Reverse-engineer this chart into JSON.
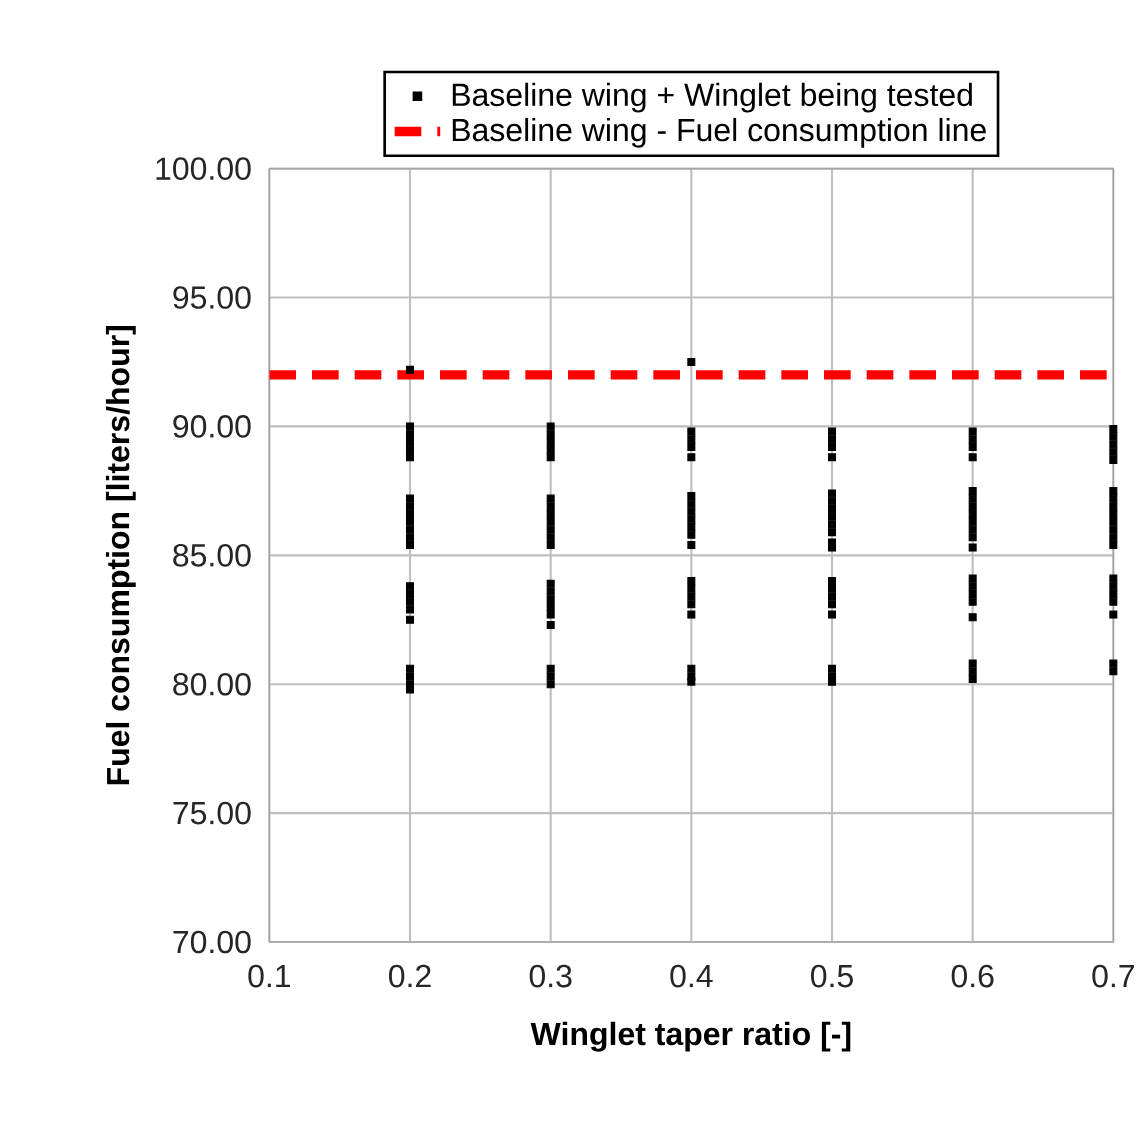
{
  "chart_data": {
    "type": "scatter",
    "xlabel": "Winglet taper ratio [-]",
    "ylabel": "Fuel consumption  [liters/hour]",
    "xlim": [
      0.1,
      0.7
    ],
    "xticks": [
      0.1,
      0.2,
      0.3,
      0.4,
      0.5,
      0.6,
      0.7
    ],
    "ylim": [
      70,
      100
    ],
    "yticks": [
      {
        "value": 70,
        "label": "70.00"
      },
      {
        "value": 75,
        "label": "75.00"
      },
      {
        "value": 80,
        "label": "80.00"
      },
      {
        "value": 85,
        "label": "85.00"
      },
      {
        "value": 90,
        "label": "90.00"
      },
      {
        "value": 95,
        "label": "95.00"
      },
      {
        "value": 100,
        "label": "100.00"
      }
    ],
    "grid": true,
    "legend": "top",
    "series": [
      {
        "name": "Baseline wing + Winglet being tested",
        "color": "#000000",
        "marker": "square",
        "x": [
          0.2,
          0.2,
          0.2,
          0.2,
          0.2,
          0.2,
          0.2,
          0.2,
          0.2,
          0.2,
          0.2,
          0.2,
          0.2,
          0.2,
          0.2,
          0.2,
          0.2,
          0.2,
          0.2,
          0.2,
          0.2,
          0.2,
          0.3,
          0.3,
          0.3,
          0.3,
          0.3,
          0.3,
          0.3,
          0.3,
          0.3,
          0.3,
          0.3,
          0.3,
          0.3,
          0.3,
          0.3,
          0.3,
          0.3,
          0.3,
          0.3,
          0.3,
          0.3,
          0.4,
          0.4,
          0.4,
          0.4,
          0.4,
          0.4,
          0.4,
          0.4,
          0.4,
          0.4,
          0.4,
          0.4,
          0.4,
          0.4,
          0.4,
          0.4,
          0.4,
          0.4,
          0.4,
          0.4,
          0.5,
          0.5,
          0.5,
          0.5,
          0.5,
          0.5,
          0.5,
          0.5,
          0.5,
          0.5,
          0.5,
          0.5,
          0.5,
          0.5,
          0.5,
          0.5,
          0.5,
          0.5,
          0.5,
          0.5,
          0.6,
          0.6,
          0.6,
          0.6,
          0.6,
          0.6,
          0.6,
          0.6,
          0.6,
          0.6,
          0.6,
          0.6,
          0.6,
          0.6,
          0.6,
          0.6,
          0.6,
          0.6,
          0.6,
          0.6,
          0.7,
          0.7,
          0.7,
          0.7,
          0.7,
          0.7,
          0.7,
          0.7,
          0.7,
          0.7,
          0.7,
          0.7,
          0.7,
          0.7,
          0.7,
          0.7,
          0.7,
          0.7,
          0.7,
          0.7
        ],
        "values": [
          92.2,
          90.0,
          89.7,
          89.4,
          89.1,
          88.8,
          87.2,
          86.9,
          86.6,
          86.3,
          86.0,
          85.7,
          85.4,
          83.8,
          83.5,
          83.2,
          82.9,
          82.5,
          80.6,
          80.3,
          80.0,
          79.8,
          90.0,
          89.7,
          89.4,
          89.1,
          88.8,
          87.2,
          86.9,
          86.6,
          86.3,
          86.0,
          85.7,
          85.4,
          83.9,
          83.6,
          83.3,
          83.0,
          82.7,
          82.3,
          80.6,
          80.3,
          80.0,
          92.5,
          89.8,
          89.5,
          89.2,
          88.8,
          87.3,
          87.0,
          86.7,
          86.4,
          86.1,
          85.8,
          85.4,
          84.0,
          83.7,
          83.4,
          83.1,
          82.7,
          80.6,
          80.3,
          80.1,
          89.8,
          89.5,
          89.2,
          88.8,
          87.4,
          87.1,
          86.8,
          86.5,
          86.2,
          85.9,
          85.5,
          85.3,
          84.0,
          83.7,
          83.4,
          83.1,
          82.7,
          80.6,
          80.3,
          80.1,
          89.8,
          89.5,
          89.2,
          88.8,
          87.5,
          87.2,
          86.9,
          86.6,
          86.3,
          86.0,
          85.7,
          85.3,
          84.1,
          83.8,
          83.5,
          83.2,
          82.6,
          80.8,
          80.5,
          80.2,
          89.9,
          89.6,
          89.3,
          89.0,
          88.7,
          87.5,
          87.2,
          86.9,
          86.6,
          86.3,
          86.0,
          85.7,
          85.4,
          84.1,
          83.8,
          83.5,
          83.2,
          82.7,
          80.8,
          80.5
        ]
      },
      {
        "name": "Baseline wing - Fuel consumption line",
        "type": "line",
        "color": "#ff0000",
        "marker": "none",
        "line_style": "dashed",
        "x": [
          0.1,
          0.7
        ],
        "values": [
          92.0,
          92.0
        ]
      }
    ]
  }
}
